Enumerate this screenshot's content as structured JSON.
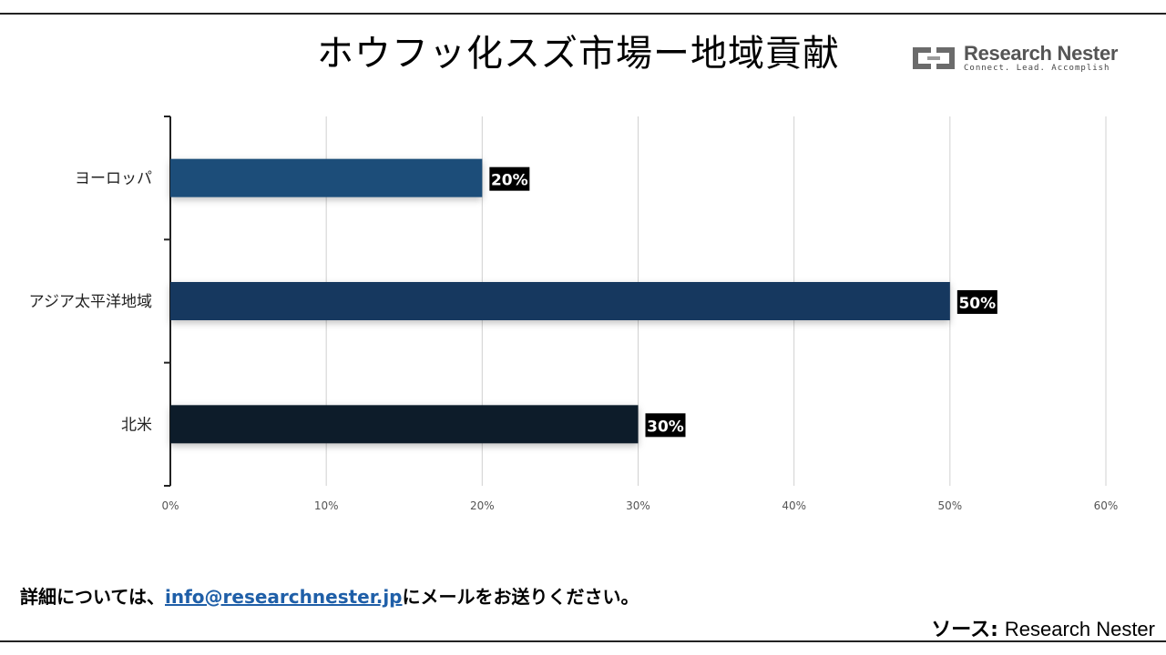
{
  "header": {
    "title": "ホウフッ化スズ市場ー地域貢献",
    "logo_name": "Research Nester",
    "logo_tagline": "Connect. Lead. Accomplish"
  },
  "chart_data": {
    "type": "bar",
    "orientation": "horizontal",
    "title": "ホウフッ化スズ市場ー地域貢献",
    "categories": [
      "ヨーロッパ",
      "アジア太平洋地域",
      "北米"
    ],
    "values": [
      20,
      50,
      30
    ],
    "value_labels": [
      "20%",
      "50%",
      "30%"
    ],
    "bar_colors": [
      "#1f4e79",
      "#17375e",
      "#0d1b2a"
    ],
    "xlim": [
      0,
      60
    ],
    "xticks": [
      "0%",
      "10%",
      "20%",
      "30%",
      "40%",
      "50%",
      "60%"
    ],
    "grid": "vertical"
  },
  "footer": {
    "contact_prefix": "詳細については、",
    "contact_email": "info@researchnester.jp",
    "contact_suffix": "にメールをお送りください。",
    "source_label": "ソース:",
    "source_value": "Research Nester"
  }
}
